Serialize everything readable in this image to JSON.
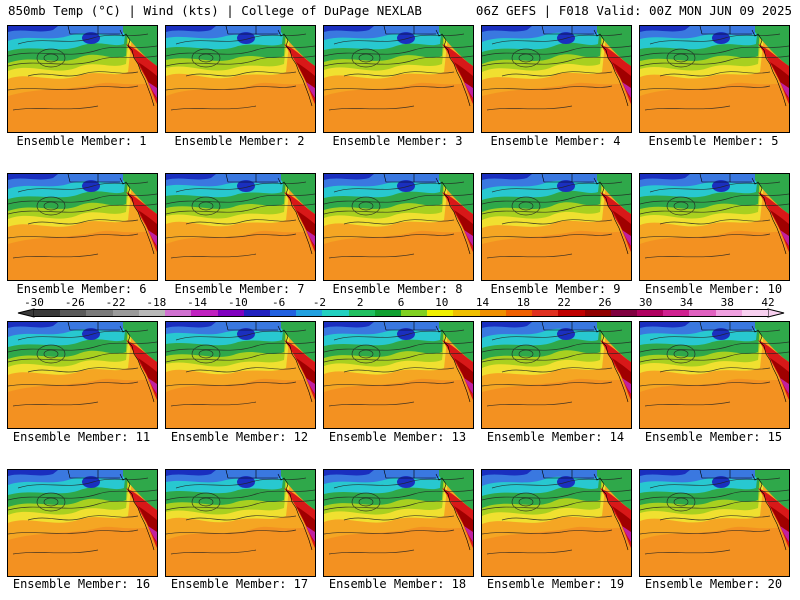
{
  "header": {
    "left": "850mb Temp (°C) | Wind (kts) | College of DuPage NEXLAB",
    "right": "06Z GEFS | F018 Valid: 00Z MON JUN 09 2025"
  },
  "panels": [
    {
      "caption": "Ensemble Member: 1"
    },
    {
      "caption": "Ensemble Member: 2"
    },
    {
      "caption": "Ensemble Member: 3"
    },
    {
      "caption": "Ensemble Member: 4"
    },
    {
      "caption": "Ensemble Member: 5"
    },
    {
      "caption": "Ensemble Member: 6"
    },
    {
      "caption": "Ensemble Member: 7"
    },
    {
      "caption": "Ensemble Member: 8"
    },
    {
      "caption": "Ensemble Member: 9"
    },
    {
      "caption": "Ensemble Member: 10"
    },
    {
      "caption": "Ensemble Member: 11"
    },
    {
      "caption": "Ensemble Member: 12"
    },
    {
      "caption": "Ensemble Member: 13"
    },
    {
      "caption": "Ensemble Member: 14"
    },
    {
      "caption": "Ensemble Member: 15"
    },
    {
      "caption": "Ensemble Member: 16"
    },
    {
      "caption": "Ensemble Member: 17"
    },
    {
      "caption": "Ensemble Member: 18"
    },
    {
      "caption": "Ensemble Member: 19"
    },
    {
      "caption": "Ensemble Member: 20"
    }
  ],
  "colorbar": {
    "labels": [
      "-30",
      "-26",
      "-22",
      "-18",
      "-14",
      "-10",
      "-6",
      "-2",
      "2",
      "6",
      "10",
      "14",
      "18",
      "22",
      "26",
      "30",
      "34",
      "38",
      "42"
    ],
    "colors": [
      "#3a3a3a",
      "#5a5a5a",
      "#7a7a7a",
      "#9a9a9a",
      "#b8b8b8",
      "#d070d0",
      "#c020c0",
      "#8000c0",
      "#2020c0",
      "#2060e0",
      "#20a0e0",
      "#20d0c0",
      "#20c060",
      "#10a030",
      "#80d020",
      "#f0f000",
      "#f0c000",
      "#f09000",
      "#f06000",
      "#e03020",
      "#c00000",
      "#900000",
      "#800040",
      "#b00060",
      "#d02090",
      "#e060c0",
      "#f0a0e0",
      "#f8d0f0"
    ]
  },
  "map_colors": {
    "deep_blue": "#1a2fbf",
    "blue": "#3a78e0",
    "cyan": "#28c8d0",
    "green": "#2fa84a",
    "yellow_green": "#a8d020",
    "yellow": "#f0e030",
    "orange": "#f5a623",
    "dark_orange": "#f08020",
    "red": "#d81818",
    "dark_red": "#a00000",
    "magenta": "#c020a0"
  }
}
